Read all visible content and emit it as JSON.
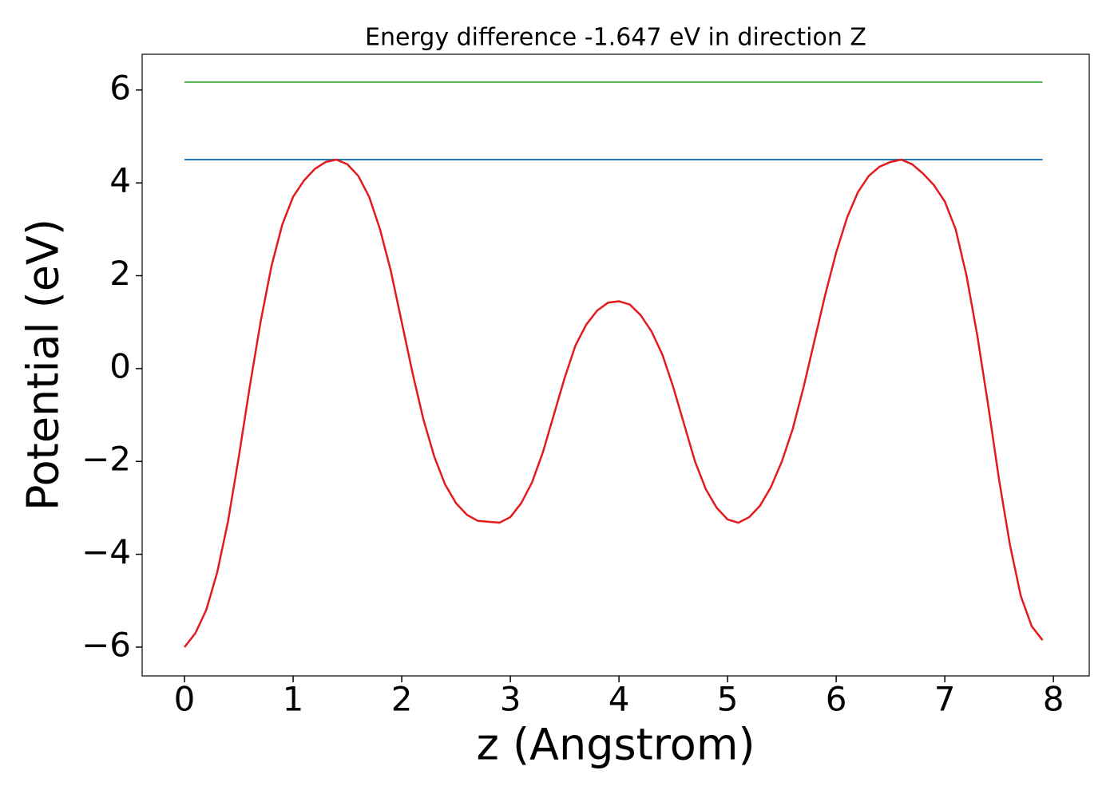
{
  "chart_data": {
    "type": "line",
    "title": "Energy difference -1.647 eV in direction Z",
    "xlabel": "z (Angstrom)",
    "ylabel": "Potential (eV)",
    "xlim": [
      -0.39,
      8.33
    ],
    "ylim": [
      -6.62,
      6.77
    ],
    "xticks": [
      0,
      1,
      2,
      3,
      4,
      5,
      6,
      7,
      8
    ],
    "yticks": [
      {
        "value": -6,
        "label": "−6"
      },
      {
        "value": -4,
        "label": "−4"
      },
      {
        "value": -2,
        "label": "−2"
      },
      0,
      2,
      4,
      6
    ],
    "series": [
      {
        "color": "#e41a1c",
        "x": [
          0,
          0.1,
          0.2,
          0.3,
          0.4,
          0.5,
          0.6,
          0.7,
          0.8,
          0.9,
          1.0,
          1.1,
          1.2,
          1.3,
          1.4,
          1.5,
          1.6,
          1.7,
          1.8,
          1.9,
          2.0,
          2.1,
          2.2,
          2.3,
          2.4,
          2.5,
          2.6,
          2.7,
          2.8,
          2.9,
          3.0,
          3.1,
          3.2,
          3.3,
          3.4,
          3.5,
          3.6,
          3.7,
          3.8,
          3.9,
          4.0,
          4.1,
          4.2,
          4.3,
          4.4,
          4.5,
          4.6,
          4.7,
          4.8,
          4.9,
          5.0,
          5.1,
          5.2,
          5.3,
          5.4,
          5.5,
          5.6,
          5.7,
          5.8,
          5.9,
          6.0,
          6.1,
          6.2,
          6.3,
          6.4,
          6.5,
          6.6,
          6.7,
          6.8,
          6.9,
          7.0,
          7.1,
          7.2,
          7.3,
          7.4,
          7.5,
          7.6,
          7.7,
          7.8,
          7.9
        ],
        "values": [
          -6.0,
          -5.7,
          -5.2,
          -4.4,
          -3.3,
          -1.9,
          -0.4,
          1.0,
          2.2,
          3.1,
          3.7,
          4.05,
          4.3,
          4.45,
          4.5,
          4.4,
          4.15,
          3.7,
          3.0,
          2.1,
          1.0,
          -0.1,
          -1.1,
          -1.9,
          -2.5,
          -2.9,
          -3.15,
          -3.28,
          -3.3,
          -3.32,
          -3.2,
          -2.9,
          -2.45,
          -1.8,
          -1.0,
          -0.2,
          0.5,
          0.95,
          1.25,
          1.42,
          1.45,
          1.38,
          1.15,
          0.8,
          0.3,
          -0.4,
          -1.2,
          -2.0,
          -2.6,
          -3.0,
          -3.25,
          -3.32,
          -3.2,
          -2.95,
          -2.55,
          -2.0,
          -1.3,
          -0.4,
          0.6,
          1.6,
          2.5,
          3.25,
          3.8,
          4.15,
          4.35,
          4.45,
          4.5,
          4.4,
          4.2,
          3.95,
          3.6,
          3.0,
          2.0,
          0.7,
          -0.8,
          -2.4,
          -3.8,
          -4.9,
          -5.55,
          -5.85
        ]
      },
      {
        "color": "#1f77b4",
        "x": [
          0,
          7.9
        ],
        "values": [
          4.5,
          4.5
        ]
      },
      {
        "color": "#4daf4a",
        "x": [
          0,
          7.9
        ],
        "values": [
          6.17,
          6.17
        ]
      }
    ]
  }
}
